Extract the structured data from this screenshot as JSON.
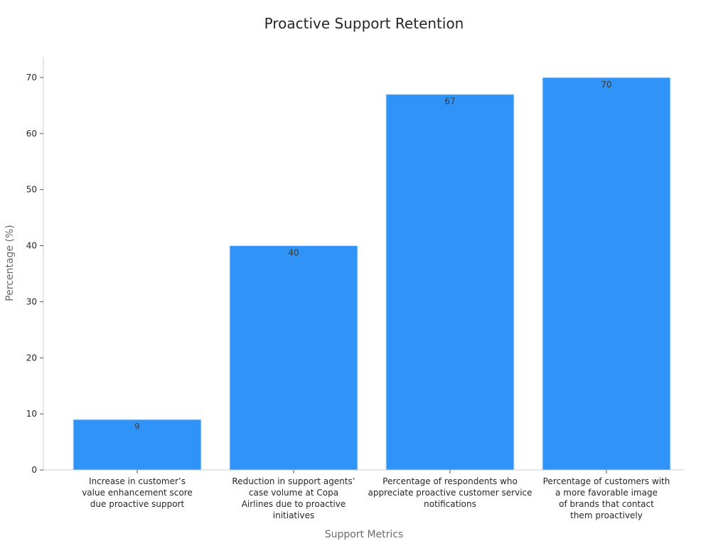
{
  "chart_data": {
    "type": "bar",
    "title": "Proactive Support Retention",
    "xlabel": "Support Metrics",
    "ylabel": "Percentage (%)",
    "ylim": [
      0,
      70
    ],
    "yticks": [
      0,
      10,
      20,
      30,
      40,
      50,
      60,
      70
    ],
    "grid": false,
    "categories": [
      [
        "Increase in customer’s",
        "value enhancement score",
        "due proactive support"
      ],
      [
        "Reduction in support agents’",
        "case volume at Copa",
        "Airlines due to proactive",
        "initiatives"
      ],
      [
        "Percentage of respondents who",
        "appreciate proactive customer service",
        "notifications"
      ],
      [
        "Percentage of customers with",
        "a more favorable image",
        "of brands that contact",
        "them proactively"
      ]
    ],
    "values": [
      9,
      40,
      67,
      70
    ],
    "bar_color": "#2f93f8",
    "bar_edge_color": "#cfe3f5",
    "axis_color": "#cccccc"
  }
}
